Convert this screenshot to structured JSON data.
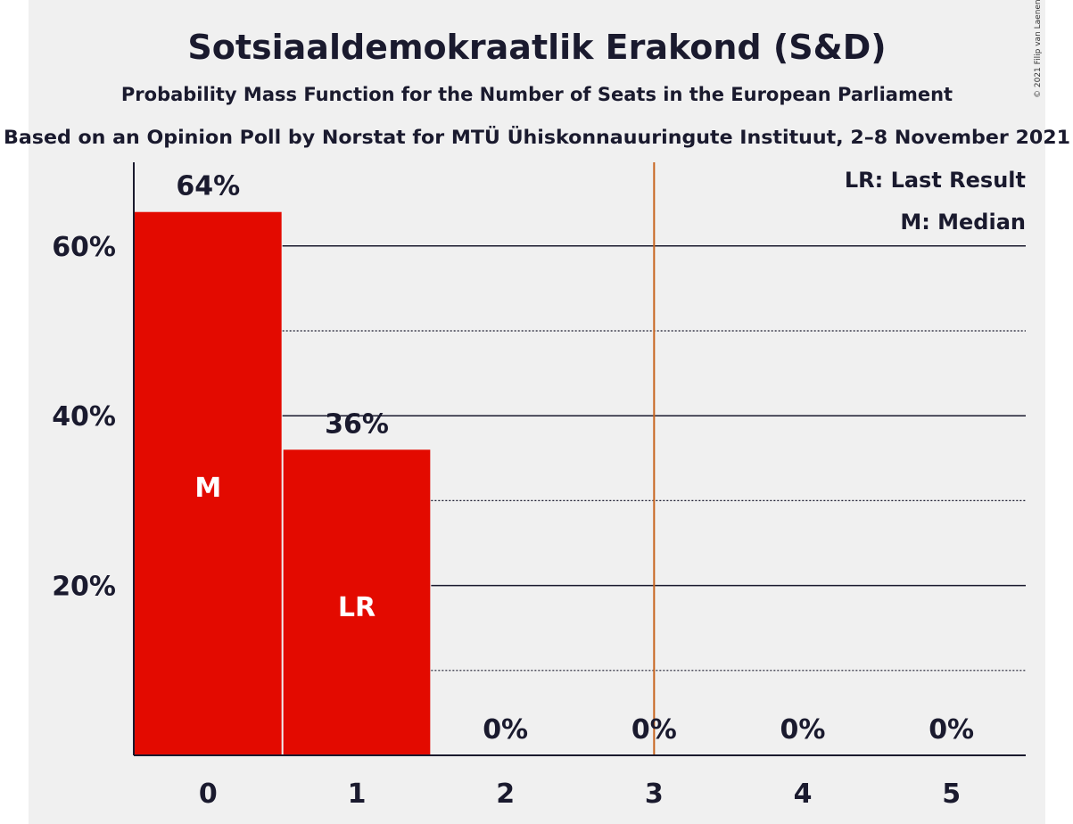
{
  "colors": {
    "background": "#ffffff",
    "panel": "#f0f0f0",
    "bar": "#e30a00",
    "last_result_line": "#c8641e",
    "text": "#1a1a2e",
    "inner_label": "#ffffff"
  },
  "title": "Sotsiaaldemokraatlik Erakond (S&D)",
  "subtitle": "Probability Mass Function for the Number of Seats in the European Parliament",
  "source": "Based on an Opinion Poll by Norstat for MTÜ Ühiskonnauuringute Instituut, 2–8 November 2021",
  "copyright": "© 2021 Filip van Laenen",
  "legend": {
    "last_result": "LR: Last Result",
    "median": "M: Median"
  },
  "chart_data": {
    "type": "bar",
    "categories": [
      "0",
      "1",
      "2",
      "3",
      "4",
      "5"
    ],
    "values": [
      64,
      36,
      0,
      0,
      0,
      0
    ],
    "value_labels": [
      "64%",
      "36%",
      "0%",
      "0%",
      "0%",
      "0%"
    ],
    "inner_labels": [
      "M",
      "LR",
      "",
      "",
      "",
      ""
    ],
    "ylim": [
      0,
      70
    ],
    "yticks": [
      20,
      40,
      60
    ],
    "ytick_labels": [
      "20%",
      "40%",
      "60%"
    ],
    "minor_gridlines": [
      10,
      30,
      50
    ],
    "last_result_boundary": 3.5,
    "legend_position": "top-right",
    "grid": true
  }
}
